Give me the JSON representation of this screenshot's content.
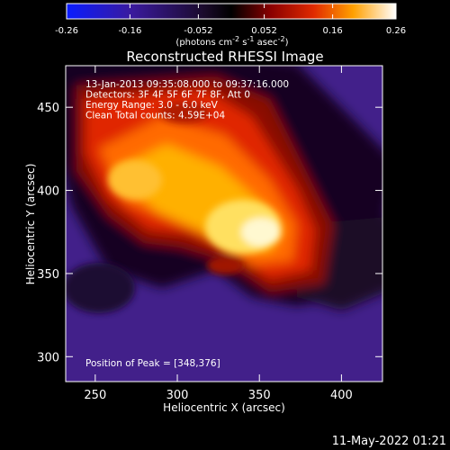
{
  "chart_data": {
    "type": "heatmap",
    "title": "Reconstructed RHESSI Image",
    "xlabel": "Heliocentric X (arcsec)",
    "ylabel": "Heliocentric Y (arcsec)",
    "xlim": [
      232,
      425
    ],
    "ylim": [
      285,
      475
    ],
    "xticks": [
      250,
      300,
      350,
      400
    ],
    "yticks": [
      300,
      350,
      400,
      450
    ],
    "colorbar": {
      "ticks": [
        "-0.26",
        "-0.16",
        "-0.052",
        "0.052",
        "0.16",
        "0.26"
      ],
      "range": [
        -0.26,
        0.26
      ],
      "unit_label": "(photons cm",
      "unit_sup1": "-2",
      "unit_mid": " s",
      "unit_sup2": "-1",
      "unit_end": " asec",
      "unit_sup3": "-2",
      "unit_close": ")"
    },
    "annotations": [
      "13-Jan-2013 09:35:08.000 to 09:37:16.000",
      "Detectors: 3F 4F 5F 6F 7F 8F, Att 0",
      "Energy Range: 3.0 - 6.0 keV",
      "Clean     Total counts: 4.59E+04"
    ],
    "peak_text": "Position of Peak = [348,376]",
    "peak": [
      348,
      376
    ],
    "grid": false
  },
  "footer": {
    "timestamp": "11-May-2022 01:21"
  }
}
